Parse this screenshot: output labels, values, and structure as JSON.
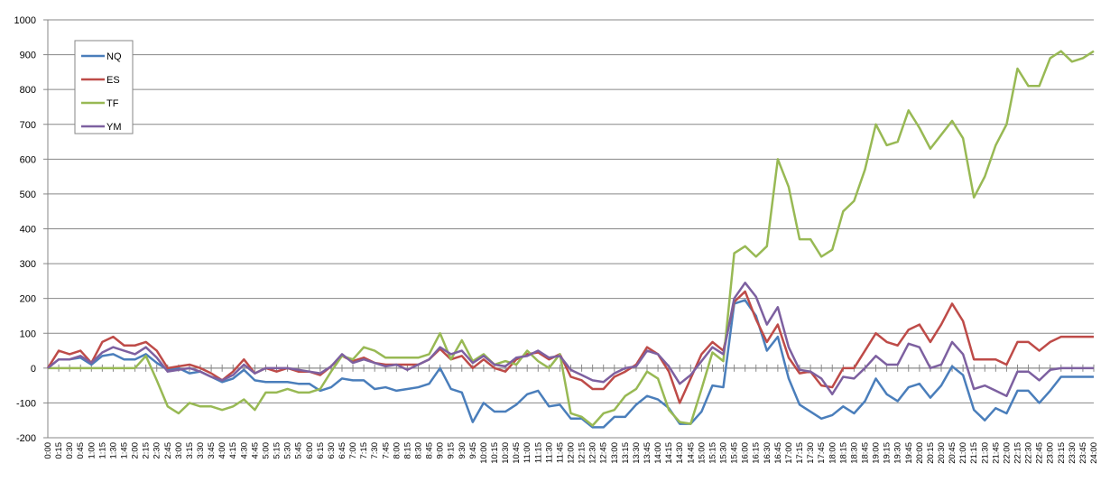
{
  "chart_data": {
    "type": "line",
    "categories": [
      "0:00",
      "0:15",
      "0:30",
      "0:45",
      "1:00",
      "1:15",
      "1:30",
      "1:45",
      "2:00",
      "2:15",
      "2:30",
      "2:45",
      "3:00",
      "3:15",
      "3:30",
      "3:45",
      "4:00",
      "4:15",
      "4:30",
      "4:45",
      "5:00",
      "5:15",
      "5:30",
      "5:45",
      "6:00",
      "6:15",
      "6:30",
      "6:45",
      "7:00",
      "7:15",
      "7:30",
      "7:45",
      "8:00",
      "8:15",
      "8:30",
      "8:45",
      "9:00",
      "9:15",
      "9:30",
      "9:45",
      "10:00",
      "10:15",
      "10:30",
      "10:45",
      "11:00",
      "11:15",
      "11:30",
      "11:45",
      "12:00",
      "12:15",
      "12:30",
      "12:45",
      "13:00",
      "13:15",
      "13:30",
      "13:45",
      "14:00",
      "14:15",
      "14:30",
      "14:45",
      "15:00",
      "15:15",
      "15:30",
      "15:45",
      "16:00",
      "16:15",
      "16:30",
      "16:45",
      "17:00",
      "17:15",
      "17:30",
      "17:45",
      "18:00",
      "18:15",
      "18:30",
      "18:45",
      "19:00",
      "19:15",
      "19:30",
      "19:45",
      "20:00",
      "20:15",
      "20:30",
      "20:45",
      "21:00",
      "21:15",
      "21:30",
      "21:45",
      "22:00",
      "22:15",
      "22:30",
      "22:45",
      "23:00",
      "23:15",
      "23:30",
      "23:45",
      "24:00"
    ],
    "series": [
      {
        "name": "NQ",
        "color": "#4a7ebb",
        "values": [
          0,
          25,
          25,
          30,
          10,
          35,
          40,
          25,
          25,
          40,
          15,
          -5,
          0,
          -15,
          -10,
          -25,
          -40,
          -30,
          -5,
          -35,
          -40,
          -40,
          -40,
          -45,
          -45,
          -65,
          -55,
          -30,
          -35,
          -35,
          -60,
          -55,
          -65,
          -60,
          -55,
          -45,
          0,
          -60,
          -70,
          -155,
          -100,
          -125,
          -125,
          -105,
          -75,
          -65,
          -110,
          -105,
          -145,
          -145,
          -170,
          -170,
          -140,
          -140,
          -105,
          -80,
          -90,
          -115,
          -160,
          -160,
          -125,
          -50,
          -55,
          185,
          195,
          150,
          50,
          90,
          -30,
          -105,
          -125,
          -145,
          -135,
          -110,
          -130,
          -95,
          -30,
          -75,
          -95,
          -55,
          -45,
          -85,
          -50,
          5,
          -20,
          -120,
          -150,
          -115,
          -130,
          -65,
          -65,
          -100,
          -65,
          -25,
          -25,
          -25,
          -25
        ]
      },
      {
        "name": "ES",
        "color": "#be4b48",
        "values": [
          0,
          50,
          40,
          50,
          15,
          75,
          90,
          65,
          65,
          75,
          50,
          0,
          5,
          10,
          0,
          -15,
          -35,
          -10,
          25,
          -15,
          0,
          -10,
          0,
          -10,
          -10,
          -20,
          5,
          35,
          20,
          30,
          15,
          10,
          10,
          10,
          10,
          25,
          55,
          25,
          35,
          0,
          25,
          0,
          -10,
          25,
          40,
          45,
          25,
          40,
          -25,
          -35,
          -60,
          -60,
          -25,
          -10,
          10,
          60,
          40,
          -10,
          -100,
          -30,
          40,
          75,
          50,
          190,
          220,
          140,
          75,
          125,
          30,
          -15,
          -10,
          -50,
          -55,
          0,
          0,
          50,
          100,
          75,
          65,
          110,
          125,
          75,
          125,
          185,
          135,
          25,
          25,
          25,
          10,
          75,
          75,
          50,
          75,
          90,
          90,
          90,
          90
        ]
      },
      {
        "name": "TF",
        "color": "#98b954",
        "values": [
          0,
          0,
          0,
          0,
          0,
          0,
          0,
          0,
          0,
          35,
          -35,
          -110,
          -130,
          -100,
          -110,
          -110,
          -120,
          -110,
          -90,
          -120,
          -70,
          -70,
          -60,
          -70,
          -70,
          -60,
          -10,
          35,
          25,
          60,
          50,
          30,
          30,
          30,
          30,
          40,
          100,
          25,
          80,
          20,
          40,
          10,
          20,
          10,
          50,
          20,
          0,
          40,
          -130,
          -140,
          -165,
          -130,
          -120,
          -80,
          -60,
          -10,
          -30,
          -120,
          -155,
          -160,
          -60,
          45,
          20,
          330,
          350,
          320,
          350,
          600,
          520,
          370,
          370,
          320,
          340,
          450,
          480,
          570,
          700,
          640,
          650,
          740,
          690,
          630,
          670,
          710,
          660,
          490,
          550,
          640,
          700,
          860,
          810,
          810,
          890,
          910,
          880,
          890,
          910
        ]
      },
      {
        "name": "YM",
        "color": "#7d60a0",
        "values": [
          0,
          25,
          25,
          35,
          15,
          45,
          60,
          50,
          40,
          60,
          30,
          -10,
          -5,
          0,
          -10,
          -25,
          -35,
          -20,
          10,
          -15,
          0,
          0,
          0,
          -5,
          -10,
          -15,
          5,
          40,
          15,
          25,
          15,
          5,
          10,
          -5,
          10,
          25,
          60,
          40,
          50,
          15,
          35,
          10,
          5,
          30,
          35,
          50,
          30,
          35,
          -5,
          -20,
          -35,
          -40,
          -15,
          0,
          5,
          50,
          40,
          5,
          -45,
          -20,
          20,
          60,
          40,
          200,
          245,
          205,
          125,
          175,
          60,
          -5,
          -10,
          -30,
          -75,
          -25,
          -30,
          0,
          35,
          10,
          10,
          70,
          60,
          0,
          10,
          75,
          40,
          -60,
          -50,
          -65,
          -80,
          -10,
          -10,
          -35,
          -5,
          0,
          0,
          0,
          0
        ]
      }
    ],
    "ylim": [
      -200,
      1000
    ],
    "yticks": [
      -200,
      -100,
      0,
      100,
      200,
      300,
      400,
      500,
      600,
      700,
      800,
      900,
      1000
    ],
    "grid": true,
    "legend": "top-left"
  }
}
